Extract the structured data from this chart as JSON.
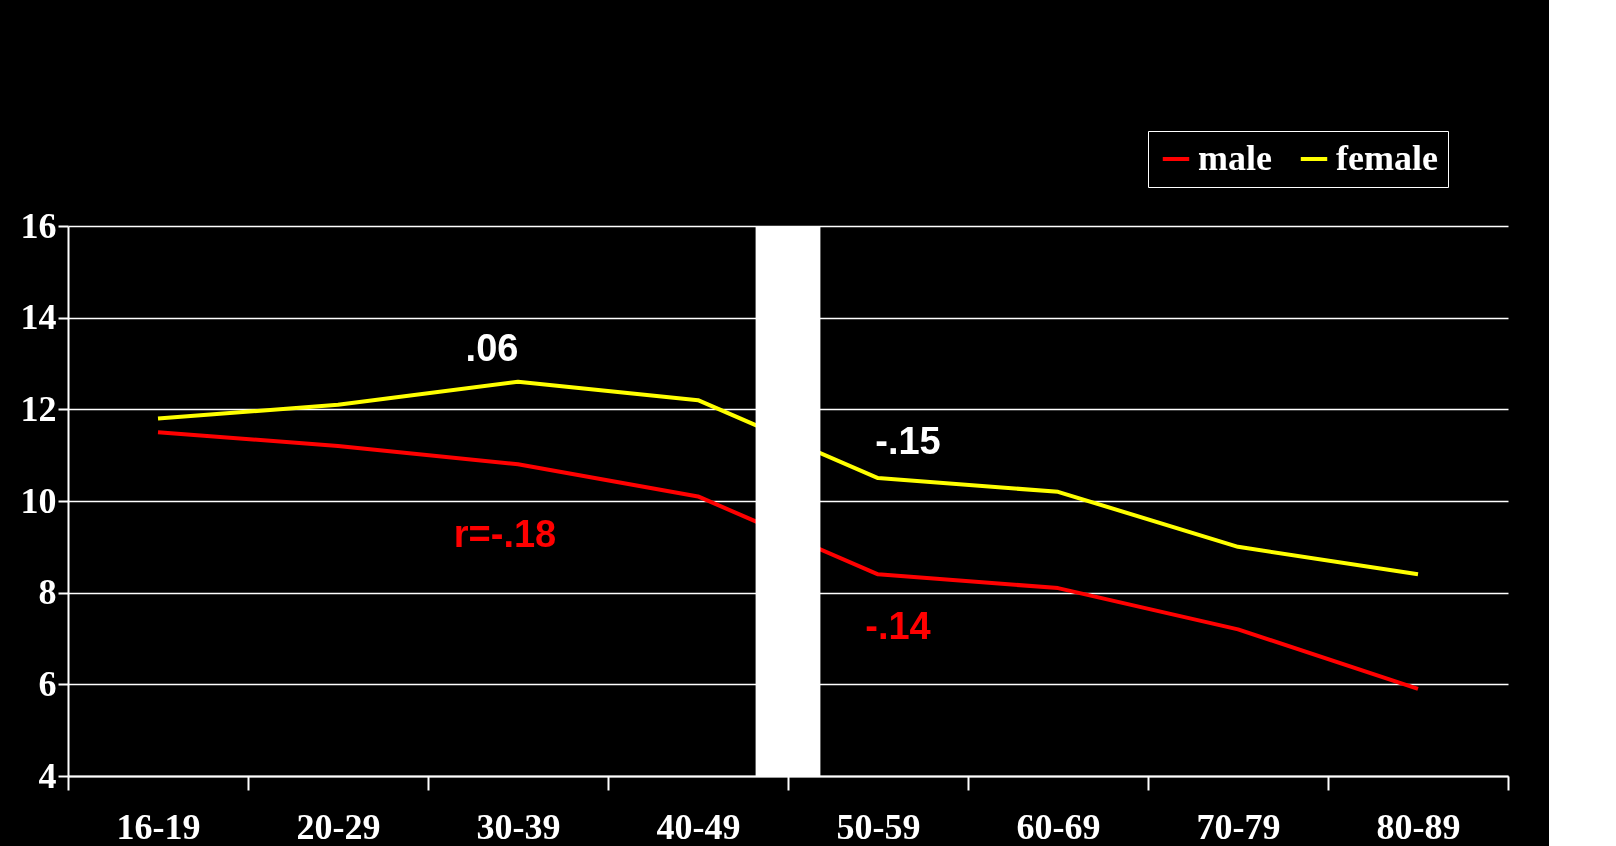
{
  "chart_data": {
    "type": "line",
    "categories": [
      "16-19",
      "20-29",
      "30-39",
      "40-49",
      "50-59",
      "60-69",
      "70-79",
      "80-89"
    ],
    "series": [
      {
        "name": "male",
        "color": "#ff0000",
        "values": [
          11.5,
          11.2,
          10.8,
          10.1,
          8.4,
          8.1,
          7.2,
          5.9
        ]
      },
      {
        "name": "female",
        "color": "#ffff00",
        "values": [
          11.8,
          12.1,
          12.6,
          12.2,
          10.5,
          10.2,
          9.0,
          8.4
        ]
      }
    ],
    "ylim": [
      4,
      16
    ],
    "yticks": [
      4,
      6,
      8,
      10,
      12,
      14,
      16
    ],
    "grid": "y",
    "legend": "top right",
    "marker": "none",
    "line_style": "solid",
    "bands": [
      {
        "axis": "x",
        "from": "40-49",
        "to": "50-59",
        "color": "#ffffff"
      }
    ],
    "annotations": [
      ".06",
      "r=-.18",
      "-.15",
      "-.14"
    ]
  }
}
